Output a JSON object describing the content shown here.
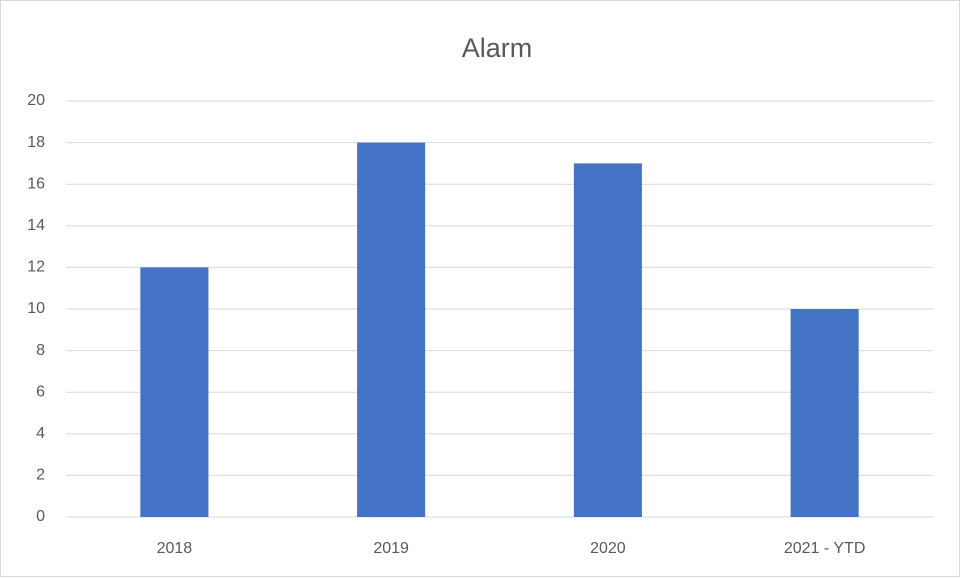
{
  "chart_data": {
    "type": "bar",
    "title": "Alarm",
    "categories": [
      "2018",
      "2019",
      "2020",
      "2021 - YTD"
    ],
    "values": [
      12,
      18,
      17,
      10
    ],
    "color": "#4472c4",
    "ylim": [
      0,
      20
    ],
    "yticks": [
      0,
      2,
      4,
      6,
      8,
      10,
      12,
      14,
      16,
      18,
      20
    ],
    "grid": true
  }
}
